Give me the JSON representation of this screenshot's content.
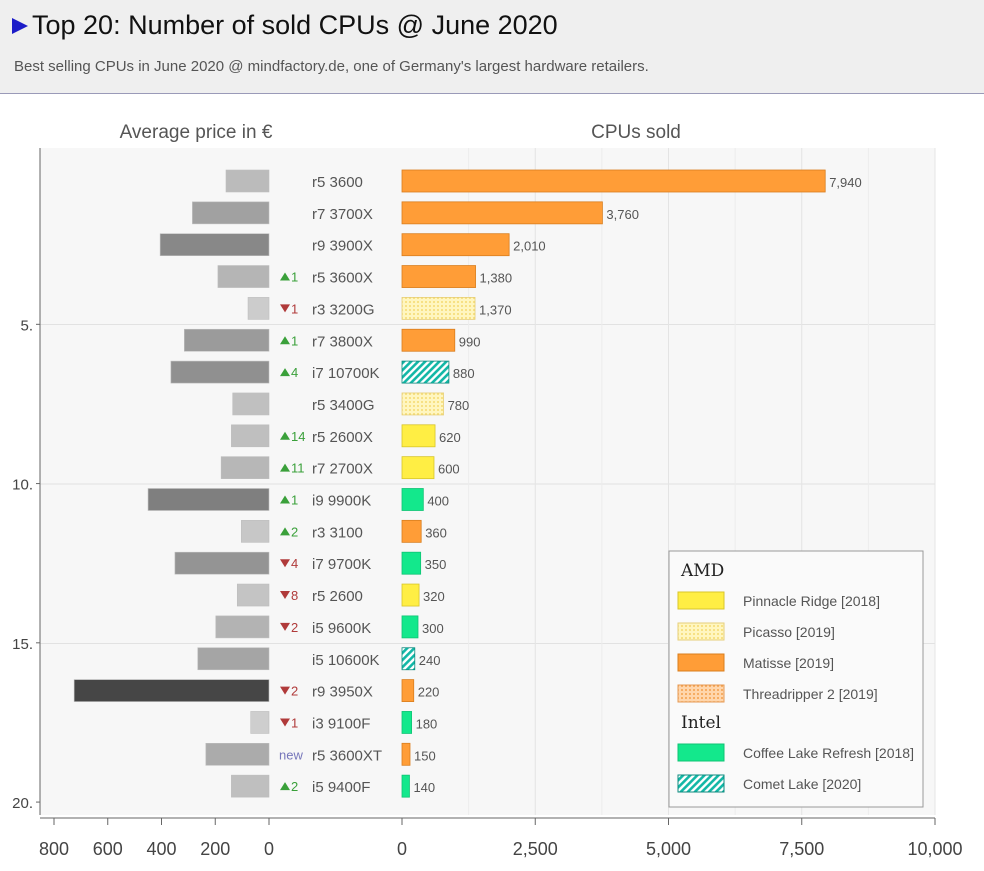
{
  "header": {
    "title": "Top 20: Number of sold CPUs  @ June 2020",
    "subtitle": "Best selling CPUs in June 2020 @ mindfactory.de, one of Germany's largest hardware retailers."
  },
  "chart_data": {
    "type": "bar",
    "left_panel": {
      "label": "Average price in €",
      "xlim": [
        800,
        0
      ],
      "ticks": [
        "800",
        "600",
        "400",
        "200",
        "0"
      ],
      "tick_values": [
        800,
        600,
        400,
        200,
        0
      ]
    },
    "right_panel": {
      "label": "CPUs sold",
      "xlim": [
        0,
        10000
      ],
      "ticks": [
        "0",
        "2,500",
        "5,000",
        "7,500",
        "10,000"
      ],
      "tick_values": [
        0,
        2500,
        5000,
        7500,
        10000
      ]
    },
    "rank_ticks": [
      {
        "rank": 5,
        "label": "5."
      },
      {
        "rank": 10,
        "label": "10."
      },
      {
        "rank": 15,
        "label": "15."
      },
      {
        "rank": 20,
        "label": "20."
      }
    ],
    "rows": [
      {
        "name": "r5 3600",
        "sold": 7940,
        "sold_label": "7,940",
        "price": 160,
        "change": "",
        "dir": "",
        "family": "matisse"
      },
      {
        "name": "r7 3700X",
        "sold": 3760,
        "sold_label": "3,760",
        "price": 285,
        "change": "",
        "dir": "",
        "family": "matisse"
      },
      {
        "name": "r9 3900X",
        "sold": 2010,
        "sold_label": "2,010",
        "price": 405,
        "change": "",
        "dir": "",
        "family": "matisse"
      },
      {
        "name": "r5 3600X",
        "sold": 1380,
        "sold_label": "1,380",
        "price": 190,
        "change": "1",
        "dir": "up",
        "family": "matisse"
      },
      {
        "name": "r3 3200G",
        "sold": 1370,
        "sold_label": "1,370",
        "price": 78,
        "change": "1",
        "dir": "down",
        "family": "picasso"
      },
      {
        "name": "r7 3800X",
        "sold": 990,
        "sold_label": "990",
        "price": 315,
        "change": "1",
        "dir": "up",
        "family": "matisse"
      },
      {
        "name": "i7 10700K",
        "sold": 880,
        "sold_label": "880",
        "price": 365,
        "change": "4",
        "dir": "up",
        "family": "cometlake"
      },
      {
        "name": "r5 3400G",
        "sold": 780,
        "sold_label": "780",
        "price": 135,
        "change": "",
        "dir": "",
        "family": "picasso"
      },
      {
        "name": "r5 2600X",
        "sold": 620,
        "sold_label": "620",
        "price": 140,
        "change": "14",
        "dir": "up",
        "family": "pinnacle"
      },
      {
        "name": "r7 2700X",
        "sold": 600,
        "sold_label": "600",
        "price": 178,
        "change": "11",
        "dir": "up",
        "family": "pinnacle"
      },
      {
        "name": "i9 9900K",
        "sold": 400,
        "sold_label": "400",
        "price": 450,
        "change": "1",
        "dir": "up",
        "family": "coffeelake"
      },
      {
        "name": "r3 3100",
        "sold": 360,
        "sold_label": "360",
        "price": 103,
        "change": "2",
        "dir": "up",
        "family": "matisse"
      },
      {
        "name": "i7 9700K",
        "sold": 350,
        "sold_label": "350",
        "price": 350,
        "change": "4",
        "dir": "down",
        "family": "coffeelake"
      },
      {
        "name": "r5 2600",
        "sold": 320,
        "sold_label": "320",
        "price": 118,
        "change": "8",
        "dir": "down",
        "family": "pinnacle"
      },
      {
        "name": "i5 9600K",
        "sold": 300,
        "sold_label": "300",
        "price": 198,
        "change": "2",
        "dir": "down",
        "family": "coffeelake"
      },
      {
        "name": "i5 10600K",
        "sold": 240,
        "sold_label": "240",
        "price": 265,
        "change": "",
        "dir": "",
        "family": "cometlake"
      },
      {
        "name": "r9 3950X",
        "sold": 220,
        "sold_label": "220",
        "price": 725,
        "change": "2",
        "dir": "down",
        "family": "matisse"
      },
      {
        "name": "i3 9100F",
        "sold": 180,
        "sold_label": "180",
        "price": 68,
        "change": "1",
        "dir": "down",
        "family": "coffeelake"
      },
      {
        "name": "r5 3600XT",
        "sold": 150,
        "sold_label": "150",
        "price": 235,
        "change": "new",
        "dir": "new",
        "family": "matisse"
      },
      {
        "name": "i5 9400F",
        "sold": 140,
        "sold_label": "140",
        "price": 140,
        "change": "2",
        "dir": "up",
        "family": "coffeelake"
      }
    ],
    "legend": {
      "placement": "bottom-right",
      "groups": [
        {
          "name": "AMD",
          "items": [
            {
              "key": "pinnacle",
              "label": "Pinnacle Ridge [2018]"
            },
            {
              "key": "picasso",
              "label": "Picasso [2019]"
            },
            {
              "key": "matisse",
              "label": "Matisse [2019]"
            },
            {
              "key": "threadripper",
              "label": "Threadripper 2 [2019]"
            }
          ]
        },
        {
          "name": "Intel",
          "items": [
            {
              "key": "coffeelake",
              "label": "Coffee Lake Refresh [2018]"
            },
            {
              "key": "cometlake",
              "label": "Comet Lake [2020]"
            }
          ]
        }
      ]
    },
    "colors": {
      "matisse": "#ff9d37",
      "pinnacle": "#ffee44",
      "picasso": "#fff3a8",
      "threadripper": "#ffc48a",
      "coffeelake": "#13e88c",
      "cometlake": "#12b7a6",
      "up": "#3aa03a",
      "down": "#b03a3a",
      "new": "#7777bb"
    }
  }
}
